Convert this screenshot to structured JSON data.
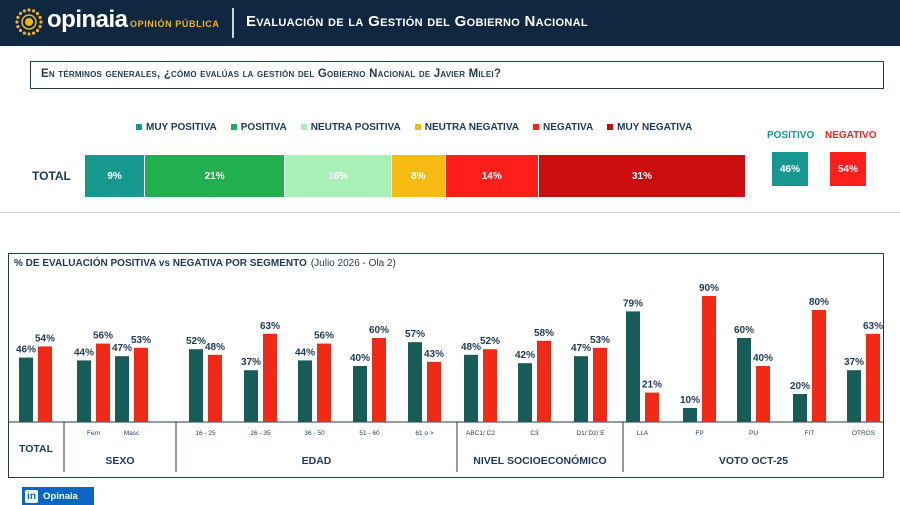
{
  "header": {
    "brand": "opinaia",
    "brand_sub": "OPINIÓN PÚBLICA",
    "title": "Evaluación de la Gestión del Gobierno Nacional"
  },
  "question": "En términos generales, ¿cómo evalúas la gestión del Gobierno Nacional de Javier Milei?",
  "colors": {
    "muy_positiva": "#17988f",
    "positiva": "#20b050",
    "neutra_positiva": "#a8efb8",
    "neutra_negativa": "#f6bb12",
    "negativa": "#ff1f1a",
    "muy_negativa": "#cc0d0d",
    "bar_positive": "#175c56",
    "bar_negative": "#f02a16",
    "navy": "#1f3a57"
  },
  "chart_data": [
    {
      "type": "bar",
      "orientation": "horizontal-stacked",
      "categories": [
        "TOTAL"
      ],
      "series": [
        {
          "name": "MUY POSITIVA",
          "values": [
            9
          ],
          "label": "9%"
        },
        {
          "name": "POSITIVA",
          "values": [
            21
          ],
          "label": "21%"
        },
        {
          "name": "NEUTRA POSITIVA",
          "values": [
            16
          ],
          "label": "16%"
        },
        {
          "name": "NEUTRA NEGATIVA",
          "values": [
            8
          ],
          "label": "8%"
        },
        {
          "name": "NEGATIVA",
          "values": [
            14
          ],
          "label": "14%"
        },
        {
          "name": "MUY NEGATIVA",
          "values": [
            31
          ],
          "label": "31%"
        }
      ],
      "summary": {
        "positivo_label": "POSITIVO",
        "positivo_value": "46%",
        "negativo_label": "NEGATIVO",
        "negativo_value": "54%"
      }
    },
    {
      "type": "bar",
      "title": "% DE EVALUACIÓN POSITIVA vs NEGATIVA POR SEGMENTO",
      "subtitle": "(Julio 2026 - Ola 2)",
      "groups": [
        {
          "label": "TOTAL",
          "categories": [
            "TOTAL"
          ],
          "positive": [
            46
          ],
          "negative": [
            54
          ]
        },
        {
          "label": "SEXO",
          "categories": [
            "Fem",
            "Masc"
          ],
          "positive": [
            44,
            47
          ],
          "negative": [
            56,
            53
          ]
        },
        {
          "label": "EDAD",
          "categories": [
            "16 - 25",
            "26 - 35",
            "36 - 50",
            "51 - 60",
            "61 o >"
          ],
          "positive": [
            52,
            37,
            44,
            40,
            57
          ],
          "negative": [
            48,
            63,
            56,
            60,
            43
          ]
        },
        {
          "label": "NIVEL SOCIOECONÓMICO",
          "categories": [
            "ABC1/ C2",
            "C3",
            "D1/ D2/ E"
          ],
          "positive": [
            48,
            42,
            47
          ],
          "negative": [
            52,
            58,
            53
          ]
        },
        {
          "label": "VOTO OCT-25",
          "categories": [
            "LLA",
            "FP",
            "PU",
            "FIT",
            "OTROS"
          ],
          "positive": [
            79,
            10,
            60,
            20,
            37
          ],
          "negative": [
            21,
            90,
            40,
            80,
            63
          ]
        }
      ],
      "ylim": [
        0,
        100
      ]
    }
  ],
  "footer": {
    "badge_icon": "linkedin-icon",
    "badge_label": "Opinaia"
  }
}
